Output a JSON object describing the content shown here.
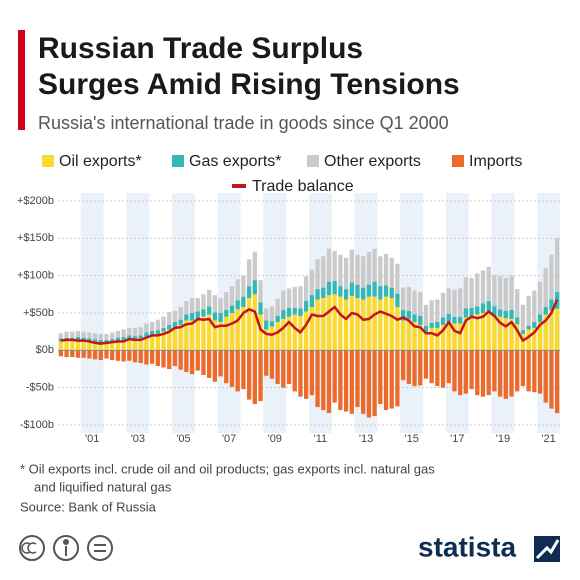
{
  "chart_data": {
    "type": "bar",
    "title": [
      "Russian Trade Surplus",
      "Surges Amid Rising Tensions"
    ],
    "subtitle": "Russia's international trade in goods since Q1 2000",
    "footnote": [
      "* Oil exports incl. crude oil and oil products; gas exports incl. natural gas",
      "and liquified natural gas"
    ],
    "source": "Source: Bank of Russia",
    "brand": "statista",
    "xlim": [
      2000,
      2022
    ],
    "xticks": [
      {
        "value": 2001,
        "label": "'01"
      },
      {
        "value": 2003,
        "label": "'03"
      },
      {
        "value": 2005,
        "label": "'05"
      },
      {
        "value": 2007,
        "label": "'07"
      },
      {
        "value": 2009,
        "label": "'09"
      },
      {
        "value": 2011,
        "label": "'11"
      },
      {
        "value": 2013,
        "label": "'13"
      },
      {
        "value": 2015,
        "label": "'15"
      },
      {
        "value": 2017,
        "label": "'17"
      },
      {
        "value": 2019,
        "label": "'19"
      },
      {
        "value": 2021,
        "label": "'21"
      }
    ],
    "ylim": [
      -100,
      200
    ],
    "yticks": [
      {
        "value": 200,
        "label": "+$200b"
      },
      {
        "value": 150,
        "label": "+$150b"
      },
      {
        "value": 100,
        "label": "+$100b"
      },
      {
        "value": 50,
        "label": "+$50b"
      },
      {
        "value": 0,
        "label": "$0b"
      },
      {
        "value": -50,
        "label": "-$50b"
      },
      {
        "value": -100,
        "label": "-$100b"
      }
    ],
    "grid": true,
    "series": [
      {
        "name": "Oil exports*",
        "color": "#fbd92d",
        "stack": "exports",
        "values": [
          12,
          13,
          13,
          13,
          12,
          12,
          11,
          10,
          10,
          12,
          13,
          14,
          15,
          15,
          16,
          18,
          20,
          22,
          25,
          28,
          30,
          34,
          40,
          40,
          40,
          45,
          48,
          40,
          38,
          45,
          50,
          55,
          58,
          70,
          75,
          48,
          28,
          32,
          38,
          42,
          45,
          48,
          46,
          52,
          58,
          68,
          70,
          74,
          75,
          72,
          68,
          73,
          70,
          68,
          72,
          72,
          68,
          72,
          70,
          58,
          40,
          42,
          38,
          34,
          24,
          30,
          30,
          34,
          38,
          36,
          36,
          44,
          44,
          48,
          50,
          52,
          45,
          45,
          43,
          42,
          35,
          22,
          28,
          30,
          38,
          48,
          54,
          56
        ]
      },
      {
        "name": "Gas exports*",
        "color": "#33b8b6",
        "stack": "exports",
        "values": [
          4,
          4,
          4,
          5,
          5,
          4,
          4,
          4,
          4,
          3,
          4,
          4,
          5,
          4,
          4,
          6,
          6,
          5,
          5,
          6,
          8,
          7,
          8,
          10,
          12,
          10,
          11,
          11,
          12,
          9,
          10,
          12,
          14,
          16,
          19,
          16,
          12,
          7,
          8,
          12,
          12,
          9,
          10,
          14,
          16,
          14,
          14,
          18,
          18,
          14,
          14,
          18,
          18,
          16,
          16,
          20,
          18,
          15,
          14,
          18,
          14,
          11,
          10,
          12,
          9,
          7,
          8,
          10,
          11,
          9,
          9,
          12,
          13,
          11,
          13,
          14,
          14,
          10,
          10,
          12,
          9,
          5,
          5,
          8,
          10,
          10,
          14,
          22
        ]
      },
      {
        "name": "Other exports",
        "color": "#cacaca",
        "stack": "exports",
        "values": [
          7,
          8,
          8,
          8,
          8,
          8,
          8,
          8,
          8,
          9,
          9,
          10,
          10,
          11,
          11,
          12,
          12,
          14,
          15,
          17,
          15,
          17,
          18,
          20,
          18,
          20,
          22,
          23,
          20,
          24,
          26,
          28,
          28,
          36,
          38,
          30,
          16,
          20,
          23,
          26,
          26,
          28,
          30,
          33,
          34,
          40,
          42,
          44,
          40,
          42,
          42,
          44,
          40,
          42,
          44,
          44,
          40,
          42,
          40,
          40,
          30,
          32,
          32,
          32,
          28,
          30,
          30,
          33,
          34,
          36,
          38,
          42,
          40,
          44,
          44,
          46,
          42,
          44,
          44,
          46,
          38,
          34,
          40,
          42,
          44,
          52,
          60,
          72
        ]
      },
      {
        "name": "Imports",
        "color": "#ec6a2c",
        "stack": "imports",
        "values": [
          -8,
          -9,
          -9,
          -10,
          -10,
          -11,
          -12,
          -13,
          -11,
          -13,
          -14,
          -15,
          -14,
          -16,
          -17,
          -19,
          -18,
          -21,
          -23,
          -25,
          -21,
          -26,
          -29,
          -32,
          -27,
          -33,
          -37,
          -42,
          -35,
          -44,
          -49,
          -55,
          -52,
          -66,
          -72,
          -68,
          -34,
          -38,
          -45,
          -50,
          -45,
          -55,
          -62,
          -65,
          -60,
          -76,
          -80,
          -84,
          -70,
          -80,
          -82,
          -85,
          -76,
          -85,
          -90,
          -88,
          -72,
          -80,
          -78,
          -75,
          -40,
          -45,
          -48,
          -47,
          -38,
          -44,
          -48,
          -50,
          -44,
          -55,
          -60,
          -58,
          -52,
          -60,
          -62,
          -60,
          -55,
          -62,
          -65,
          -62,
          -55,
          -48,
          -55,
          -56,
          -58,
          -70,
          -78,
          -84
        ]
      },
      {
        "name": "Trade balance",
        "color": "#c3161c",
        "kind": "line",
        "values": [
          13,
          14,
          14,
          13,
          13,
          12,
          10,
          9,
          10,
          11,
          12,
          12,
          15,
          14,
          14,
          17,
          20,
          20,
          22,
          25,
          30,
          31,
          35,
          36,
          42,
          41,
          42,
          31,
          33,
          33,
          36,
          40,
          50,
          55,
          52,
          28,
          22,
          21,
          24,
          30,
          38,
          30,
          24,
          34,
          48,
          46,
          46,
          52,
          58,
          48,
          42,
          50,
          48,
          41,
          42,
          48,
          52,
          49,
          46,
          41,
          44,
          40,
          32,
          31,
          23,
          23,
          20,
          27,
          38,
          26,
          23,
          40,
          45,
          43,
          45,
          52,
          46,
          37,
          32,
          38,
          27,
          13,
          18,
          24,
          34,
          40,
          50,
          68
        ]
      }
    ]
  }
}
